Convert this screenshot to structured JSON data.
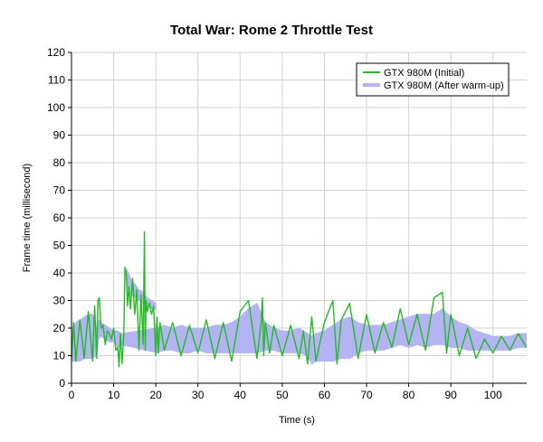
{
  "chart_data": {
    "type": "line",
    "title": "Total War: Rome 2 Throttle Test",
    "xlabel": "Time (s)",
    "ylabel": "Frame time (millisecond)",
    "xlim": [
      0,
      108
    ],
    "ylim": [
      0,
      120
    ],
    "x_ticks": [
      0,
      10,
      20,
      30,
      40,
      50,
      60,
      70,
      80,
      90,
      100
    ],
    "y_ticks": [
      0,
      10,
      20,
      30,
      40,
      50,
      60,
      70,
      80,
      90,
      100,
      110,
      120
    ],
    "grid": true,
    "legend_position": "top-right",
    "series": [
      {
        "name": "GTX 980M (Initial)",
        "color": "#22bb22",
        "x": [
          0,
          0.5,
          1,
          2,
          3,
          4,
          5,
          5.5,
          6,
          6.3,
          6.6,
          7,
          7.5,
          8,
          8.5,
          9,
          9.5,
          10,
          10.5,
          11,
          11.3,
          11.6,
          12,
          12.4,
          12.7,
          13,
          13.3,
          13.6,
          14,
          14.5,
          15,
          15.5,
          16,
          16.5,
          17,
          17.3,
          17.5,
          17.7,
          18,
          18.5,
          19,
          19.5,
          20,
          20.3,
          20.6,
          21,
          22,
          24,
          26,
          28,
          30,
          32,
          34,
          36,
          38,
          40,
          42,
          44,
          45,
          45.3,
          45.6,
          46,
          47,
          48,
          50,
          52,
          54,
          55,
          56,
          57,
          58,
          60,
          62,
          63,
          64,
          66,
          68,
          70,
          72,
          74,
          76,
          78,
          80,
          82,
          84,
          86,
          88,
          89,
          90,
          92,
          94,
          96,
          98,
          100,
          102,
          104,
          106,
          108
        ],
        "y": [
          8,
          22,
          8,
          23,
          9,
          26,
          8,
          28,
          9,
          30,
          31,
          20,
          21,
          14,
          19,
          18,
          16,
          20,
          12,
          13,
          6,
          18,
          7,
          18,
          42,
          40,
          28,
          35,
          27,
          38,
          25,
          34,
          12,
          32,
          14,
          55,
          12,
          30,
          26,
          29,
          25,
          28,
          10,
          24,
          11,
          22,
          12,
          22,
          10,
          21,
          11,
          23,
          9,
          22,
          8,
          26,
          30,
          9,
          22,
          31,
          10,
          22,
          11,
          21,
          10,
          21,
          9,
          19,
          7,
          24,
          8,
          22,
          30,
          7,
          23,
          29,
          9,
          25,
          11,
          22,
          13,
          27,
          14,
          25,
          12,
          31,
          33,
          11,
          25,
          10,
          20,
          9,
          16,
          11,
          17,
          12,
          18,
          13
        ]
      },
      {
        "name": "GTX 980M (After warm-up)",
        "color": "#b4b4f5",
        "band": [
          [
            0,
            8,
            20
          ],
          [
            1,
            8,
            22
          ],
          [
            2,
            8,
            23
          ],
          [
            3,
            9,
            24
          ],
          [
            4,
            9,
            25
          ],
          [
            5,
            9,
            25
          ],
          [
            5.8,
            10,
            20
          ],
          [
            6.5,
            16,
            23
          ],
          [
            7,
            17,
            22
          ],
          [
            8,
            16,
            21
          ],
          [
            9,
            15,
            20
          ],
          [
            10,
            15,
            19
          ],
          [
            11,
            13,
            19
          ],
          [
            11.8,
            14,
            18
          ],
          [
            20.3,
            11,
            20
          ],
          [
            22,
            12,
            21
          ],
          [
            24,
            12,
            20
          ],
          [
            26,
            11,
            21
          ],
          [
            28,
            11,
            20
          ],
          [
            30,
            12,
            20
          ],
          [
            32,
            11,
            20
          ],
          [
            34,
            11,
            21
          ],
          [
            36,
            11,
            21
          ],
          [
            38,
            11,
            22
          ],
          [
            40,
            11,
            24
          ],
          [
            42,
            11,
            27
          ],
          [
            44,
            11,
            29
          ],
          [
            46,
            12,
            22
          ],
          [
            48,
            12,
            20
          ],
          [
            50,
            11,
            19
          ],
          [
            52,
            11,
            19
          ],
          [
            54,
            11,
            20
          ],
          [
            56,
            10,
            18
          ],
          [
            57,
            7,
            17
          ],
          [
            58,
            8,
            18
          ],
          [
            60,
            8,
            19
          ],
          [
            62,
            8,
            21
          ],
          [
            64,
            9,
            23
          ],
          [
            66,
            9,
            24
          ],
          [
            68,
            11,
            22
          ],
          [
            70,
            12,
            21
          ],
          [
            72,
            12,
            21
          ],
          [
            74,
            12,
            21
          ],
          [
            76,
            13,
            22
          ],
          [
            78,
            14,
            23
          ],
          [
            80,
            13,
            24
          ],
          [
            82,
            14,
            25
          ],
          [
            84,
            13,
            25
          ],
          [
            86,
            14,
            25
          ],
          [
            88,
            14,
            27
          ],
          [
            90,
            13,
            24
          ],
          [
            92,
            13,
            22
          ],
          [
            94,
            12,
            21
          ],
          [
            96,
            12,
            19
          ],
          [
            98,
            12,
            18
          ],
          [
            100,
            12,
            17
          ],
          [
            102,
            12,
            17
          ],
          [
            104,
            12,
            17
          ],
          [
            106,
            13,
            18
          ],
          [
            108,
            13,
            18
          ]
        ],
        "band_segment_2": [
          [
            12.7,
            41,
            42
          ],
          [
            13.2,
            35,
            41
          ],
          [
            14,
            32,
            38
          ],
          [
            15,
            31,
            36
          ],
          [
            16,
            30,
            34
          ],
          [
            17,
            29,
            33
          ],
          [
            18,
            28,
            31
          ],
          [
            19,
            27,
            30
          ],
          [
            20,
            27,
            29
          ]
        ]
      }
    ]
  }
}
